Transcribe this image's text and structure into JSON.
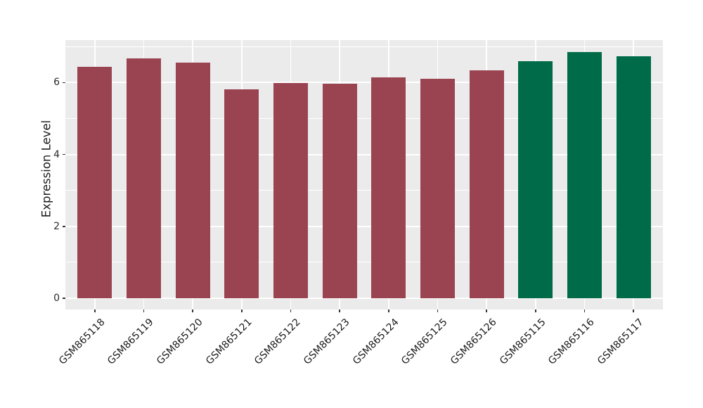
{
  "chart_data": {
    "type": "bar",
    "title": "",
    "xlabel": "",
    "ylabel": "Expression Level",
    "categories": [
      "GSM865118",
      "GSM865119",
      "GSM865120",
      "GSM865121",
      "GSM865122",
      "GSM865123",
      "GSM865124",
      "GSM865125",
      "GSM865126",
      "GSM865115",
      "GSM865116",
      "GSM865117"
    ],
    "values": [
      6.44,
      6.68,
      6.56,
      5.81,
      5.99,
      5.97,
      6.15,
      6.11,
      6.34,
      6.6,
      6.85,
      6.74
    ],
    "bar_colors": [
      "#9A4452",
      "#9A4452",
      "#9A4452",
      "#9A4452",
      "#9A4452",
      "#9A4452",
      "#9A4452",
      "#9A4452",
      "#9A4452",
      "#006B48",
      "#006B48",
      "#006B48"
    ],
    "group_colors": {
      "maroon_group": "#9A4452",
      "green_group": "#006B48"
    },
    "ytick_labels": [
      "0",
      "2",
      "4",
      "6"
    ],
    "yticks": [
      0,
      2,
      4,
      6
    ],
    "minor_gridlines": [
      1,
      3,
      5,
      7
    ],
    "ylim": [
      -0.3,
      7.2
    ],
    "grid": true,
    "legend_position": "none",
    "panel_bg": "#EBEBEB",
    "grid_color": "#FFFFFF",
    "x_label_rotation_deg": 45
  }
}
